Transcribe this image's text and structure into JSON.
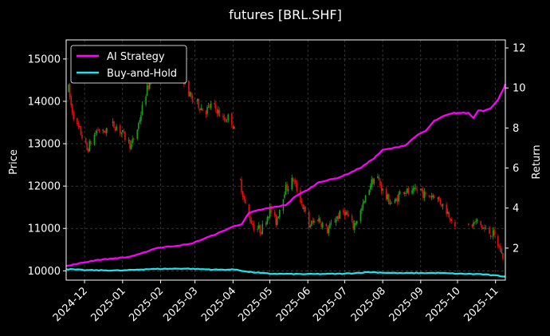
{
  "chart_data": {
    "type": "candlestick+line",
    "title": "futures [BRL.SHF]",
    "ylabel_left": "Price",
    "ylabel_right": "Return",
    "xlabel": "",
    "grid": true,
    "legend_position": "top-left",
    "colors": {
      "background": "#000000",
      "up": "#19a01a",
      "down": "#e01010",
      "ai_strategy": "#ff00ff",
      "buy_and_hold": "#1de5ee",
      "grid": "#555555",
      "text": "#ffffff"
    },
    "x_range": [
      "2024-11-16",
      "2025-11-09"
    ],
    "x_ticks": [
      "2024-12",
      "2025-01",
      "2025-02",
      "2025-03",
      "2025-04",
      "2025-05",
      "2025-06",
      "2025-07",
      "2025-08",
      "2025-09",
      "2025-10",
      "2025-11"
    ],
    "y_left_range": [
      9780,
      15450
    ],
    "y_left_ticks": [
      10000,
      11000,
      12000,
      13000,
      14000,
      15000
    ],
    "y_right_range": [
      0.4,
      12.4
    ],
    "y_right_ticks": [
      2,
      4,
      6,
      8,
      10,
      12
    ],
    "price_anchors": [
      [
        "2024-11-16",
        14700
      ],
      [
        "2024-11-20",
        13900
      ],
      [
        "2024-11-24",
        13450
      ],
      [
        "2024-11-28",
        13250
      ],
      [
        "2024-12-03",
        12850
      ],
      [
        "2024-12-08",
        13150
      ],
      [
        "2024-12-12",
        13350
      ],
      [
        "2024-12-16",
        13250
      ],
      [
        "2024-12-22",
        13450
      ],
      [
        "2024-12-28",
        13400
      ],
      [
        "2025-01-03",
        13150
      ],
      [
        "2025-01-08",
        12950
      ],
      [
        "2025-01-13",
        13350
      ],
      [
        "2025-01-20",
        14200
      ],
      [
        "2025-01-26",
        14700
      ],
      [
        "2025-02-03",
        15050
      ],
      [
        "2025-02-09",
        14950
      ],
      [
        "2025-02-14",
        14800
      ],
      [
        "2025-02-20",
        14500
      ],
      [
        "2025-02-26",
        14050
      ],
      [
        "2025-03-03",
        13950
      ],
      [
        "2025-03-09",
        13750
      ],
      [
        "2025-03-14",
        13900
      ],
      [
        "2025-03-19",
        13800
      ],
      [
        "2025-03-24",
        13550
      ],
      [
        "2025-03-30",
        13650
      ],
      [
        "2025-04-03",
        13200
      ],
      [
        "2025-04-07",
        12100
      ],
      [
        "2025-04-12",
        11400
      ],
      [
        "2025-04-18",
        11050
      ],
      [
        "2025-04-24",
        10950
      ],
      [
        "2025-05-01",
        11450
      ],
      [
        "2025-05-06",
        11150
      ],
      [
        "2025-05-13",
        11900
      ],
      [
        "2025-05-20",
        12150
      ],
      [
        "2025-05-26",
        11700
      ],
      [
        "2025-06-02",
        11050
      ],
      [
        "2025-06-09",
        11250
      ],
      [
        "2025-06-17",
        10950
      ],
      [
        "2025-06-24",
        11250
      ],
      [
        "2025-07-01",
        11400
      ],
      [
        "2025-07-08",
        11050
      ],
      [
        "2025-07-15",
        11450
      ],
      [
        "2025-07-22",
        12050
      ],
      [
        "2025-07-27",
        12250
      ],
      [
        "2025-08-03",
        11750
      ],
      [
        "2025-08-10",
        11550
      ],
      [
        "2025-08-17",
        11950
      ],
      [
        "2025-08-24",
        11800
      ],
      [
        "2025-08-31",
        11950
      ],
      [
        "2025-09-05",
        11750
      ],
      [
        "2025-09-12",
        11800
      ],
      [
        "2025-09-19",
        11550
      ],
      [
        "2025-09-26",
        11250
      ],
      [
        "2025-09-30",
        10850
      ],
      [
        "2025-10-10",
        11050
      ],
      [
        "2025-10-17",
        11150
      ],
      [
        "2025-10-24",
        10950
      ],
      [
        "2025-10-30",
        10850
      ],
      [
        "2025-11-04",
        10550
      ],
      [
        "2025-11-09",
        10200
      ]
    ],
    "gaps": [
      [
        "2024-12-20",
        "2024-12-23"
      ],
      [
        "2025-01-27",
        "2025-02-16"
      ],
      [
        "2025-04-03",
        "2025-04-06"
      ],
      [
        "2025-09-30",
        "2025-10-09"
      ]
    ],
    "series": [
      {
        "name": "AI Strategy",
        "points": [
          [
            "2024-11-16",
            1.1
          ],
          [
            "2024-12-10",
            1.4
          ],
          [
            "2025-01-05",
            1.55
          ],
          [
            "2025-01-15",
            1.7
          ],
          [
            "2025-01-28",
            2.0
          ],
          [
            "2025-02-25",
            2.2
          ],
          [
            "2025-03-20",
            2.75
          ],
          [
            "2025-04-02",
            3.1
          ],
          [
            "2025-04-08",
            3.2
          ],
          [
            "2025-04-14",
            3.75
          ],
          [
            "2025-04-22",
            3.9
          ],
          [
            "2025-05-05",
            4.05
          ],
          [
            "2025-05-14",
            4.15
          ],
          [
            "2025-05-22",
            4.6
          ],
          [
            "2025-06-02",
            4.95
          ],
          [
            "2025-06-10",
            5.3
          ],
          [
            "2025-06-25",
            5.5
          ],
          [
            "2025-07-05",
            5.75
          ],
          [
            "2025-07-15",
            6.05
          ],
          [
            "2025-07-25",
            6.5
          ],
          [
            "2025-08-01",
            6.9
          ],
          [
            "2025-08-10",
            7.0
          ],
          [
            "2025-08-20",
            7.15
          ],
          [
            "2025-08-28",
            7.6
          ],
          [
            "2025-09-05",
            7.85
          ],
          [
            "2025-09-12",
            8.35
          ],
          [
            "2025-09-20",
            8.6
          ],
          [
            "2025-09-28",
            8.75
          ],
          [
            "2025-10-10",
            8.75
          ],
          [
            "2025-10-14",
            8.5
          ],
          [
            "2025-10-18",
            8.9
          ],
          [
            "2025-10-22",
            8.85
          ],
          [
            "2025-10-28",
            9.0
          ],
          [
            "2025-11-03",
            9.4
          ],
          [
            "2025-11-07",
            9.9
          ],
          [
            "2025-11-09",
            10.2
          ]
        ]
      },
      {
        "name": "Buy-and-Hold",
        "points": [
          [
            "2024-11-16",
            0.95
          ],
          [
            "2024-12-01",
            0.9
          ],
          [
            "2025-01-01",
            0.88
          ],
          [
            "2025-01-20",
            0.95
          ],
          [
            "2025-02-20",
            0.98
          ],
          [
            "2025-03-05",
            0.95
          ],
          [
            "2025-03-20",
            0.92
          ],
          [
            "2025-04-04",
            0.93
          ],
          [
            "2025-04-12",
            0.82
          ],
          [
            "2025-05-01",
            0.72
          ],
          [
            "2025-06-01",
            0.7
          ],
          [
            "2025-07-01",
            0.72
          ],
          [
            "2025-07-20",
            0.8
          ],
          [
            "2025-08-15",
            0.75
          ],
          [
            "2025-09-15",
            0.76
          ],
          [
            "2025-10-01",
            0.72
          ],
          [
            "2025-10-20",
            0.7
          ],
          [
            "2025-11-09",
            0.58
          ]
        ]
      }
    ]
  }
}
